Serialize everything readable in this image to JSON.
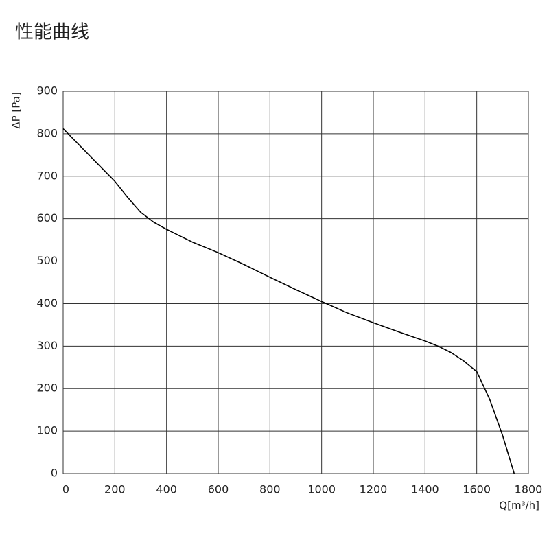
{
  "chart_data": {
    "type": "line",
    "title": "性能曲线",
    "x_label": "Q[m³/h]",
    "y_label": "ΔP [Pa]",
    "x": [
      0,
      100,
      200,
      250,
      300,
      350,
      400,
      500,
      600,
      700,
      800,
      900,
      1000,
      1100,
      1200,
      1300,
      1400,
      1450,
      1500,
      1550,
      1600,
      1650,
      1700,
      1730,
      1745
    ],
    "series": [
      {
        "name": "ΔP",
        "color": "#000000",
        "values": [
          812,
          750,
          688,
          650,
          615,
          592,
          575,
          545,
          520,
          492,
          462,
          433,
          405,
          378,
          355,
          333,
          312,
          300,
          285,
          265,
          240,
          175,
          90,
          30,
          0
        ]
      }
    ],
    "xlim": [
      0,
      1800
    ],
    "xticks": [
      0,
      200,
      400,
      600,
      800,
      1000,
      1200,
      1400,
      1600,
      1800
    ],
    "ylim": [
      0,
      900
    ],
    "yticks": [
      0,
      100,
      200,
      300,
      400,
      500,
      600,
      700,
      800,
      900
    ],
    "grid": true
  }
}
